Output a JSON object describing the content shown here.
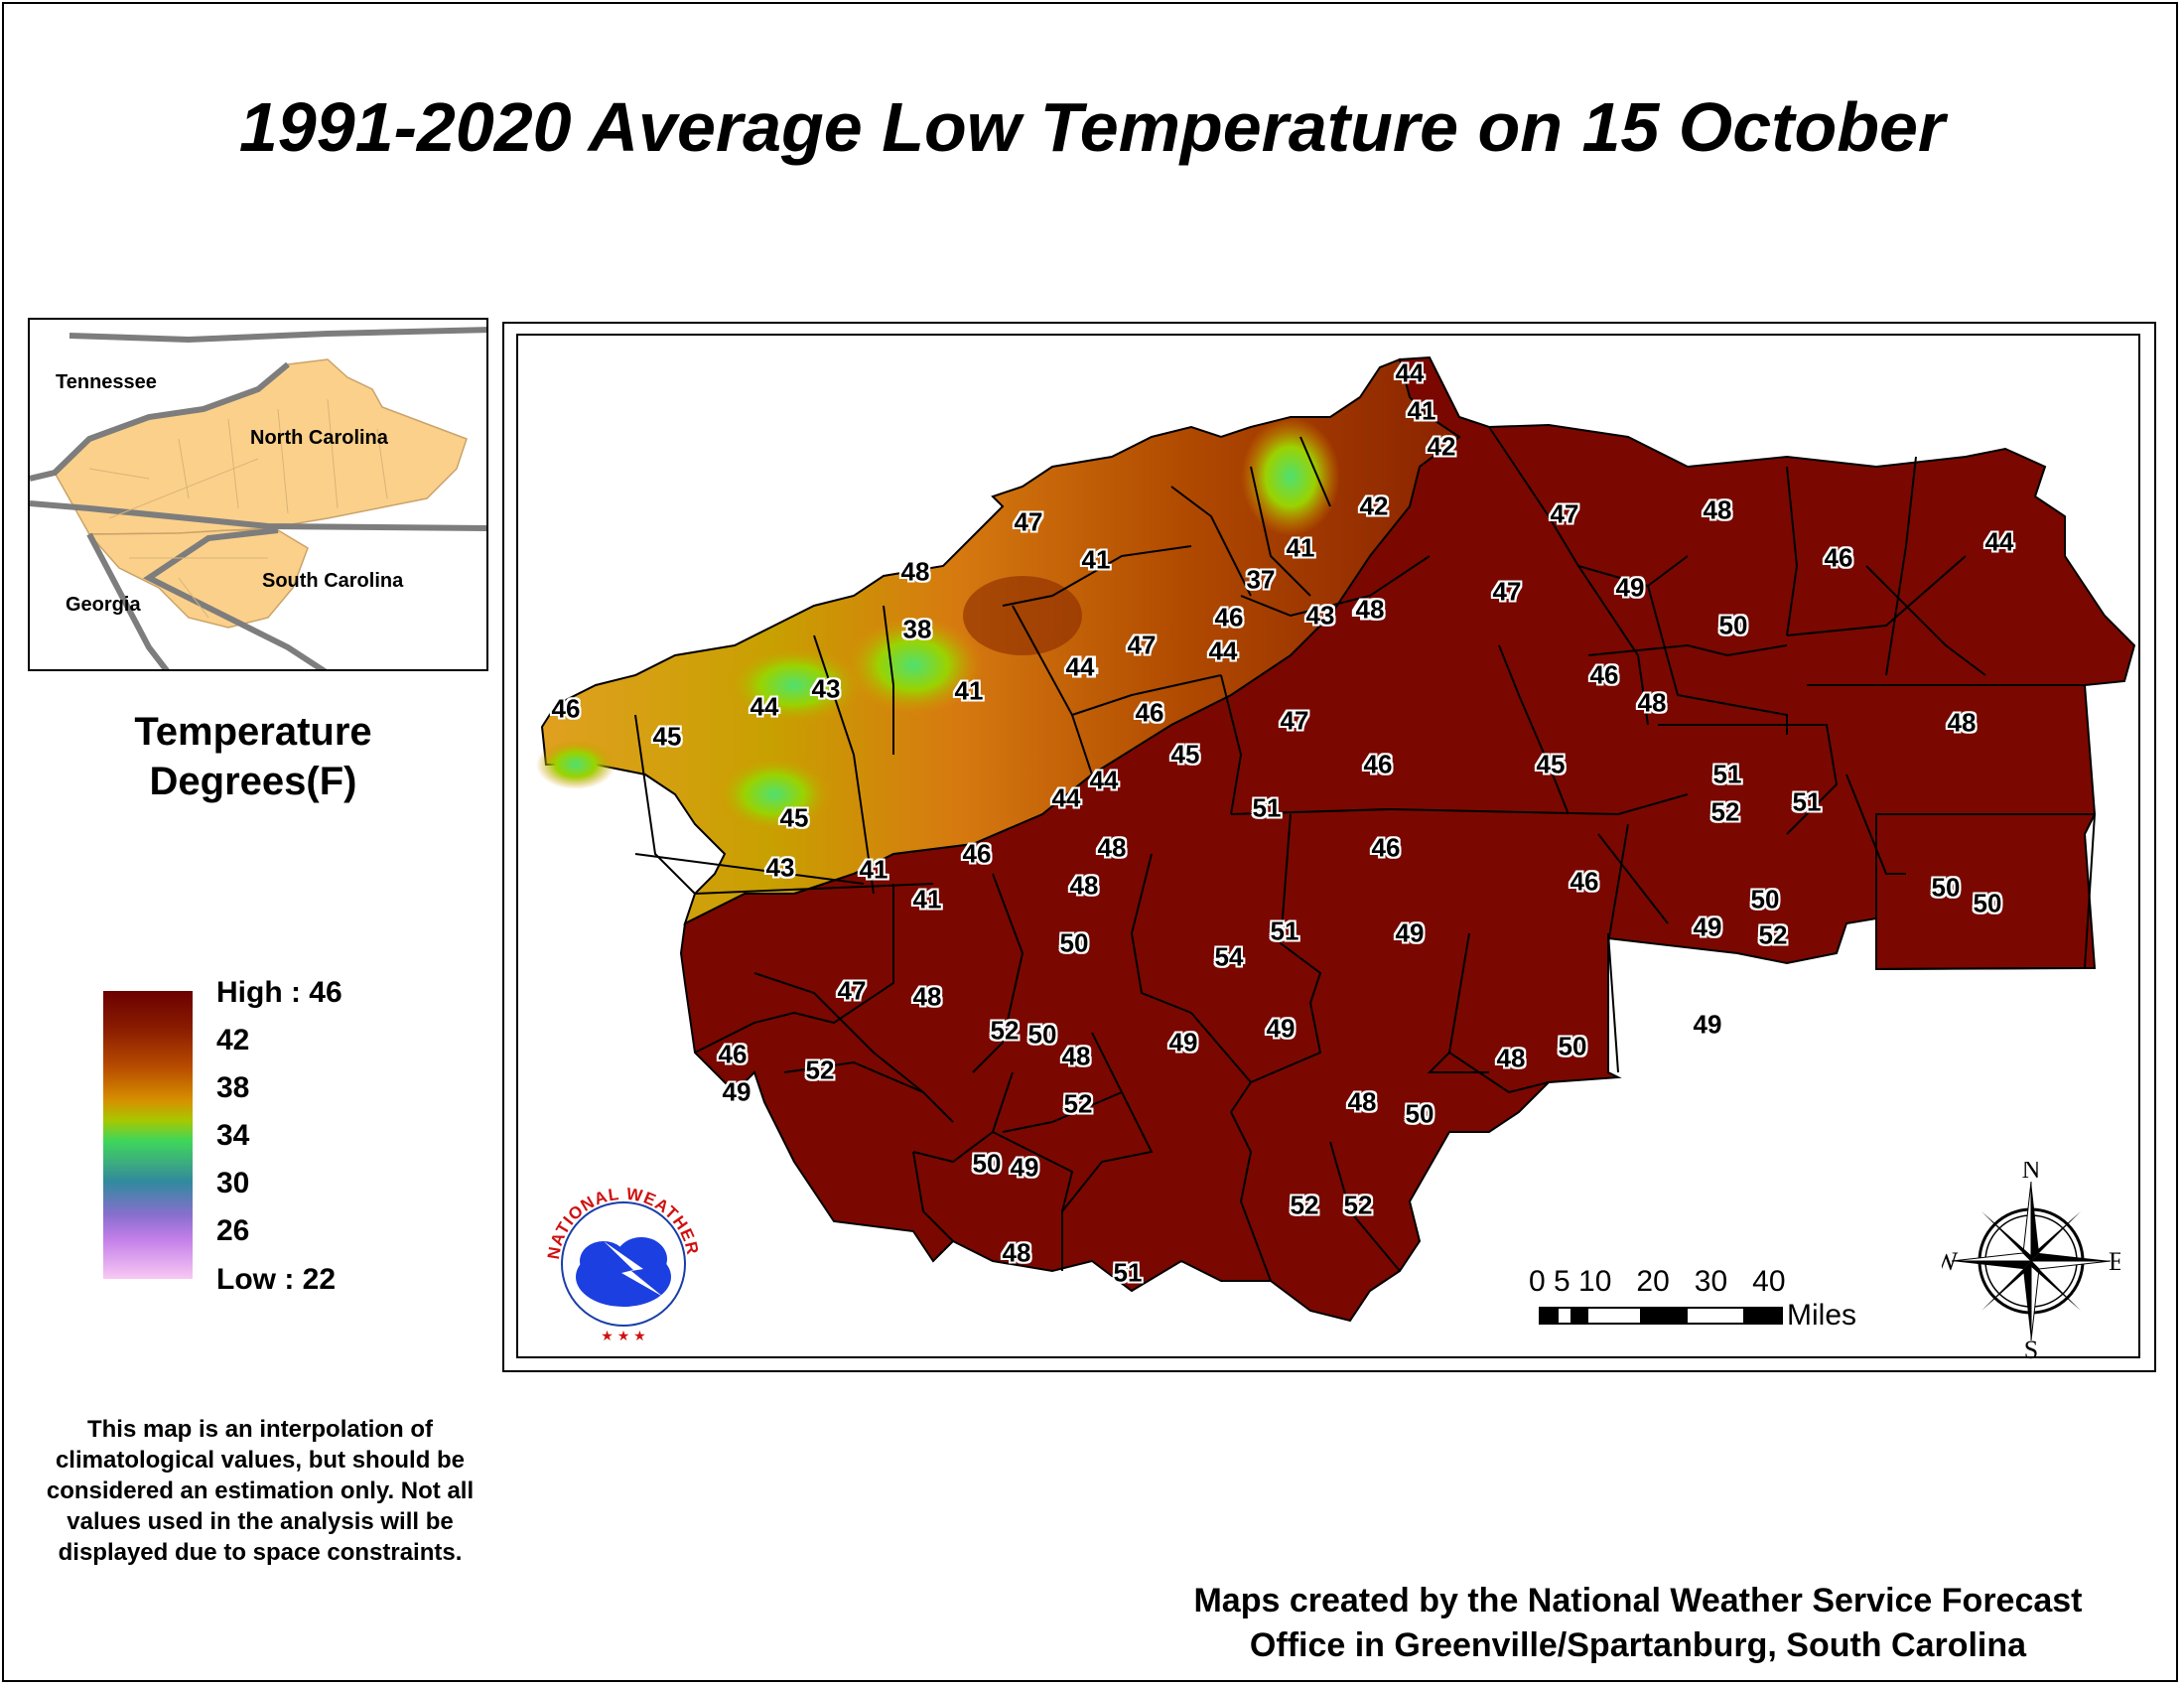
{
  "title": "1991-2020 Average Low Temperature on 15 October",
  "inset": {
    "labels": [
      "Tennessee",
      "North Carolina",
      "Georgia",
      "South Carolina"
    ]
  },
  "legend": {
    "title_line1": "Temperature",
    "title_line2": "Degrees(F)",
    "high": "High : 46",
    "ticks": [
      "42",
      "38",
      "34",
      "30",
      "26"
    ],
    "low": "Low : 22",
    "colors": {
      "high": "#6b0000",
      "mid_orange": "#d69000",
      "mid_green": "#3fd65a",
      "mid_teal": "#2f8a9c",
      "low": "#f8c8f4"
    }
  },
  "disclaimer": "This map is an interpolation of climatological values, but should be considered an estimation only. Not all values used in the analysis will be displayed due to space constraints.",
  "credit_line1": "Maps created by the National Weather Service Forecast",
  "credit_line2": "Office in Greenville/Spartanburg, South Carolina",
  "scale": {
    "numbers": "0 5 10   20   30   40",
    "unit": "Miles"
  },
  "compass": {
    "n": "N",
    "s": "S",
    "e": "E",
    "w": "W"
  },
  "logo": {
    "text": "NATIONAL WEATHER SERVICE"
  },
  "station_values": [
    "44",
    "41",
    "42",
    "47",
    "48",
    "46",
    "44",
    "42",
    "41",
    "37",
    "47",
    "41",
    "49",
    "50",
    "47",
    "48",
    "48",
    "38",
    "46",
    "43",
    "48",
    "41",
    "44",
    "47",
    "44",
    "46",
    "46",
    "44",
    "43",
    "44",
    "46",
    "45",
    "45",
    "47",
    "46",
    "48",
    "51",
    "51",
    "52",
    "51",
    "48",
    "45",
    "44",
    "44",
    "45",
    "43",
    "41",
    "46",
    "48",
    "46",
    "41",
    "48",
    "50",
    "54",
    "51",
    "49",
    "46",
    "50",
    "49",
    "52",
    "50",
    "50",
    "47",
    "48",
    "52",
    "50",
    "48",
    "49",
    "49",
    "49",
    "46",
    "52",
    "48",
    "50",
    "52",
    "48",
    "50",
    "50",
    "49",
    "52",
    "52",
    "48",
    "51",
    "49"
  ]
}
